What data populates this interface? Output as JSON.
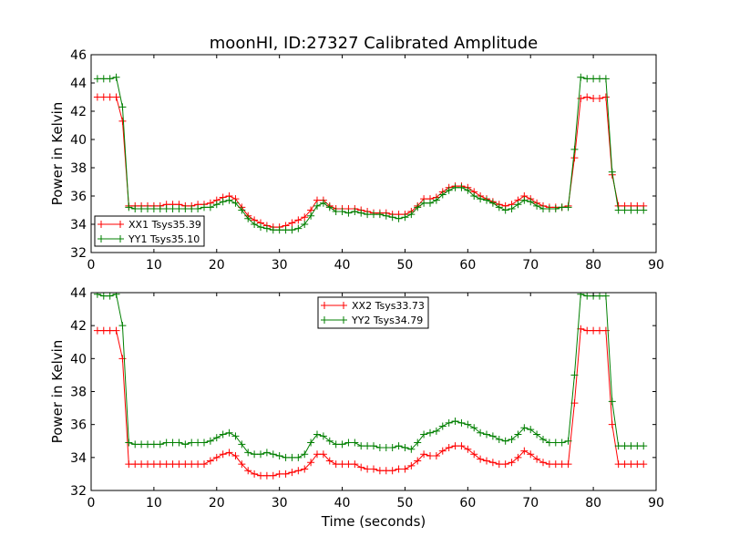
{
  "figure": {
    "title": "moonHI, ID:27327 Calibrated Amplitude",
    "xlabel": "Time (seconds)"
  },
  "chart_data": [
    {
      "type": "line",
      "ylabel": "Power in Kelvin",
      "xlim": [
        0,
        90
      ],
      "ylim": [
        32,
        46
      ],
      "xticks": [
        0,
        10,
        20,
        30,
        40,
        50,
        60,
        70,
        80,
        90
      ],
      "yticks": [
        32,
        34,
        36,
        38,
        40,
        42,
        44,
        46
      ],
      "grid": false,
      "legend_position": "lower-left",
      "x": [
        1,
        2,
        3,
        4,
        5,
        6,
        7,
        8,
        9,
        10,
        11,
        12,
        13,
        14,
        15,
        16,
        17,
        18,
        19,
        20,
        21,
        22,
        23,
        24,
        25,
        26,
        27,
        28,
        29,
        30,
        31,
        32,
        33,
        34,
        35,
        36,
        37,
        38,
        39,
        40,
        41,
        42,
        43,
        44,
        45,
        46,
        47,
        48,
        49,
        50,
        51,
        52,
        53,
        54,
        55,
        56,
        57,
        58,
        59,
        60,
        61,
        62,
        63,
        64,
        65,
        66,
        67,
        68,
        69,
        70,
        71,
        72,
        73,
        74,
        75,
        76,
        77,
        78,
        79,
        80,
        81,
        82,
        83,
        84,
        85,
        86,
        87,
        88
      ],
      "series": [
        {
          "name": "XX1 Tsys35.39",
          "color": "#ff0000",
          "values": [
            43.0,
            43.0,
            43.0,
            43.0,
            41.3,
            35.3,
            35.3,
            35.3,
            35.3,
            35.3,
            35.3,
            35.4,
            35.4,
            35.4,
            35.3,
            35.3,
            35.4,
            35.4,
            35.5,
            35.7,
            35.9,
            36.0,
            35.8,
            35.2,
            34.6,
            34.3,
            34.1,
            33.9,
            33.8,
            33.8,
            33.9,
            34.1,
            34.3,
            34.5,
            35.0,
            35.7,
            35.7,
            35.3,
            35.1,
            35.1,
            35.1,
            35.1,
            35.0,
            34.9,
            34.8,
            34.8,
            34.8,
            34.7,
            34.7,
            34.7,
            34.9,
            35.3,
            35.8,
            35.8,
            35.9,
            36.3,
            36.6,
            36.7,
            36.7,
            36.6,
            36.3,
            36.0,
            35.8,
            35.6,
            35.4,
            35.3,
            35.4,
            35.7,
            36.0,
            35.8,
            35.5,
            35.3,
            35.2,
            35.2,
            35.2,
            35.3,
            38.7,
            42.9,
            43.0,
            42.9,
            42.9,
            43.0,
            37.5,
            35.3,
            35.3,
            35.3,
            35.3,
            35.3
          ]
        },
        {
          "name": "YY1 Tsys35.10",
          "color": "#007f00",
          "values": [
            44.3,
            44.3,
            44.3,
            44.4,
            42.3,
            35.2,
            35.1,
            35.1,
            35.1,
            35.1,
            35.1,
            35.1,
            35.1,
            35.1,
            35.1,
            35.1,
            35.1,
            35.2,
            35.2,
            35.4,
            35.6,
            35.7,
            35.5,
            35.0,
            34.4,
            34.0,
            33.8,
            33.7,
            33.6,
            33.6,
            33.6,
            33.6,
            33.7,
            34.0,
            34.6,
            35.3,
            35.5,
            35.2,
            34.9,
            34.9,
            34.8,
            34.9,
            34.8,
            34.7,
            34.7,
            34.7,
            34.6,
            34.5,
            34.4,
            34.5,
            34.7,
            35.2,
            35.5,
            35.5,
            35.7,
            36.1,
            36.4,
            36.6,
            36.6,
            36.4,
            36.0,
            35.8,
            35.7,
            35.5,
            35.2,
            35.0,
            35.1,
            35.4,
            35.7,
            35.6,
            35.3,
            35.1,
            35.1,
            35.1,
            35.2,
            35.2,
            39.3,
            44.4,
            44.3,
            44.3,
            44.3,
            44.3,
            37.7,
            35.0,
            35.0,
            35.0,
            35.0,
            35.0
          ]
        }
      ]
    },
    {
      "type": "line",
      "ylabel": "Power in Kelvin",
      "xlim": [
        0,
        90
      ],
      "ylim": [
        32,
        44
      ],
      "xticks": [
        0,
        10,
        20,
        30,
        40,
        50,
        60,
        70,
        80,
        90
      ],
      "yticks": [
        32,
        34,
        36,
        38,
        40,
        42,
        44
      ],
      "grid": false,
      "legend_position": "top-center",
      "x": [
        1,
        2,
        3,
        4,
        5,
        6,
        7,
        8,
        9,
        10,
        11,
        12,
        13,
        14,
        15,
        16,
        17,
        18,
        19,
        20,
        21,
        22,
        23,
        24,
        25,
        26,
        27,
        28,
        29,
        30,
        31,
        32,
        33,
        34,
        35,
        36,
        37,
        38,
        39,
        40,
        41,
        42,
        43,
        44,
        45,
        46,
        47,
        48,
        49,
        50,
        51,
        52,
        53,
        54,
        55,
        56,
        57,
        58,
        59,
        60,
        61,
        62,
        63,
        64,
        65,
        66,
        67,
        68,
        69,
        70,
        71,
        72,
        73,
        74,
        75,
        76,
        77,
        78,
        79,
        80,
        81,
        82,
        83,
        84,
        85,
        86,
        87,
        88
      ],
      "series": [
        {
          "name": "XX2 Tsys33.73",
          "color": "#ff0000",
          "values": [
            41.7,
            41.7,
            41.7,
            41.7,
            40.0,
            33.6,
            33.6,
            33.6,
            33.6,
            33.6,
            33.6,
            33.6,
            33.6,
            33.6,
            33.6,
            33.6,
            33.6,
            33.6,
            33.8,
            34.0,
            34.2,
            34.3,
            34.1,
            33.6,
            33.2,
            33.0,
            32.9,
            32.9,
            32.9,
            33.0,
            33.0,
            33.1,
            33.2,
            33.3,
            33.7,
            34.2,
            34.2,
            33.8,
            33.6,
            33.6,
            33.6,
            33.6,
            33.4,
            33.3,
            33.3,
            33.2,
            33.2,
            33.2,
            33.3,
            33.3,
            33.5,
            33.8,
            34.2,
            34.1,
            34.1,
            34.4,
            34.6,
            34.7,
            34.7,
            34.5,
            34.2,
            33.9,
            33.8,
            33.7,
            33.6,
            33.6,
            33.7,
            34.0,
            34.4,
            34.2,
            33.9,
            33.7,
            33.6,
            33.6,
            33.6,
            33.6,
            37.3,
            41.8,
            41.7,
            41.7,
            41.7,
            41.7,
            36.0,
            33.6,
            33.6,
            33.6,
            33.6,
            33.6
          ]
        },
        {
          "name": "YY2 Tsys34.79",
          "color": "#007f00",
          "values": [
            43.9,
            43.8,
            43.8,
            43.9,
            42.0,
            34.9,
            34.8,
            34.8,
            34.8,
            34.8,
            34.8,
            34.9,
            34.9,
            34.9,
            34.8,
            34.9,
            34.9,
            34.9,
            35.0,
            35.2,
            35.4,
            35.5,
            35.3,
            34.8,
            34.3,
            34.2,
            34.2,
            34.3,
            34.2,
            34.1,
            34.0,
            34.0,
            34.0,
            34.2,
            34.9,
            35.4,
            35.3,
            35.0,
            34.8,
            34.8,
            34.9,
            34.9,
            34.7,
            34.7,
            34.7,
            34.6,
            34.6,
            34.6,
            34.7,
            34.6,
            34.5,
            34.9,
            35.4,
            35.5,
            35.6,
            35.9,
            36.1,
            36.2,
            36.1,
            36.0,
            35.8,
            35.5,
            35.4,
            35.3,
            35.1,
            35.0,
            35.1,
            35.4,
            35.8,
            35.7,
            35.4,
            35.1,
            34.9,
            34.9,
            34.9,
            35.0,
            39.0,
            43.9,
            43.8,
            43.8,
            43.8,
            43.8,
            37.4,
            34.7,
            34.7,
            34.7,
            34.7,
            34.7
          ]
        }
      ]
    }
  ]
}
